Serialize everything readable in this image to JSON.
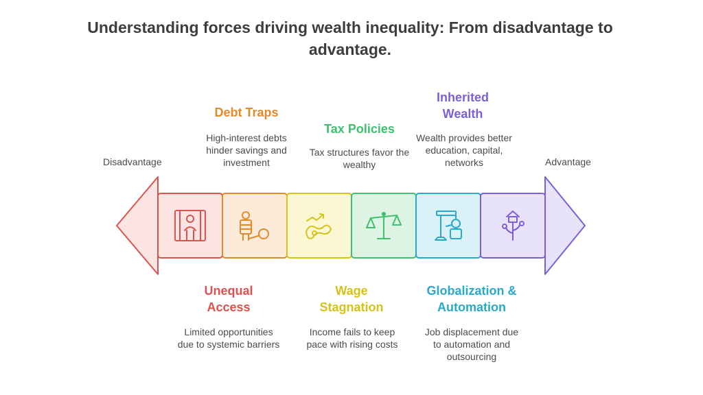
{
  "title": "Understanding forces driving wealth inequality: From disadvantage to advantage.",
  "left_label": "Disadvantage",
  "right_label": "Advantage",
  "stages": [
    {
      "heading": "Unequal Access",
      "description": "Limited opportunities due to systemic barriers",
      "color": "#d9534f",
      "fill": "#fbe4e2",
      "icon": "prison-bars-icon",
      "position": "below"
    },
    {
      "heading": "Debt Traps",
      "description": "High-interest debts hinder savings and investment",
      "color": "#e08a2e",
      "fill": "#fdebd9",
      "icon": "ball-and-chain-icon",
      "position": "above"
    },
    {
      "heading": "Wage Stagnation",
      "description": "Income fails to keep pace with rising costs",
      "color": "#d4c21a",
      "fill": "#fbf7d2",
      "icon": "stagnant-money-icon",
      "position": "below"
    },
    {
      "heading": "Tax Policies",
      "description": "Tax structures favor the wealthy",
      "color": "#3fbf6f",
      "fill": "#ddf4e4",
      "icon": "scales-icon",
      "position": "above"
    },
    {
      "heading": "Globalization & Automation",
      "description": "Job displacement due to automation and outsourcing",
      "color": "#2aa8c9",
      "fill": "#dbf1f8",
      "icon": "robot-arm-icon",
      "position": "below"
    },
    {
      "heading": "Inherited Wealth",
      "description": "Wealth provides better education, capital, networks",
      "color": "#7b5fd6",
      "fill": "#e9e3fa",
      "icon": "growth-sprout-icon",
      "position": "above"
    }
  ]
}
